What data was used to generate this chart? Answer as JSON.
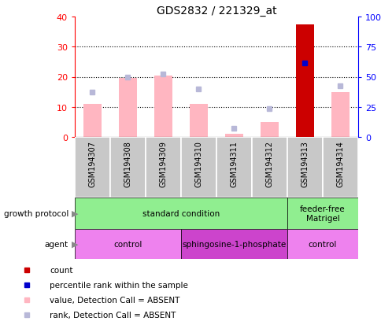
{
  "title": "GDS2832 / 221329_at",
  "samples": [
    "GSM194307",
    "GSM194308",
    "GSM194309",
    "GSM194310",
    "GSM194311",
    "GSM194312",
    "GSM194313",
    "GSM194314"
  ],
  "count_values": [
    null,
    null,
    null,
    null,
    null,
    null,
    37.5,
    null
  ],
  "value_absent": [
    11,
    19.5,
    20.5,
    11,
    1,
    5,
    null,
    15
  ],
  "rank_absent": [
    15,
    20,
    21,
    16,
    3,
    9.5,
    null,
    17
  ],
  "percentile_rank": [
    null,
    null,
    null,
    null,
    null,
    null,
    24.5,
    null
  ],
  "left_ylim": [
    0,
    40
  ],
  "right_ylim": [
    0,
    100
  ],
  "left_yticks": [
    0,
    10,
    20,
    30,
    40
  ],
  "right_yticks": [
    0,
    25,
    50,
    75,
    100
  ],
  "right_yticklabels": [
    "0",
    "25",
    "50",
    "75",
    "100%"
  ],
  "growth_protocol_groups": [
    {
      "label": "standard condition",
      "start": 0,
      "end": 6,
      "color": "#90EE90"
    },
    {
      "label": "feeder-free\nMatrigel",
      "start": 6,
      "end": 8,
      "color": "#90EE90"
    }
  ],
  "agent_groups": [
    {
      "label": "control",
      "start": 0,
      "end": 3,
      "color": "#EE82EE"
    },
    {
      "label": "sphingosine-1-phosphate",
      "start": 3,
      "end": 6,
      "color": "#CC44CC"
    },
    {
      "label": "control",
      "start": 6,
      "end": 8,
      "color": "#EE82EE"
    }
  ],
  "color_count": "#CC0000",
  "color_percentile": "#0000CC",
  "color_value_absent": "#FFB6C1",
  "color_rank_absent": "#B8B8D8",
  "bar_width": 0.5,
  "bg_color": "#FFFFFF",
  "sample_bg_color": "#C8C8C8",
  "legend_items": [
    {
      "color": "#CC0000",
      "label": "count"
    },
    {
      "color": "#0000CC",
      "label": "percentile rank within the sample"
    },
    {
      "color": "#FFB6C1",
      "label": "value, Detection Call = ABSENT"
    },
    {
      "color": "#B8B8D8",
      "label": "rank, Detection Call = ABSENT"
    }
  ]
}
